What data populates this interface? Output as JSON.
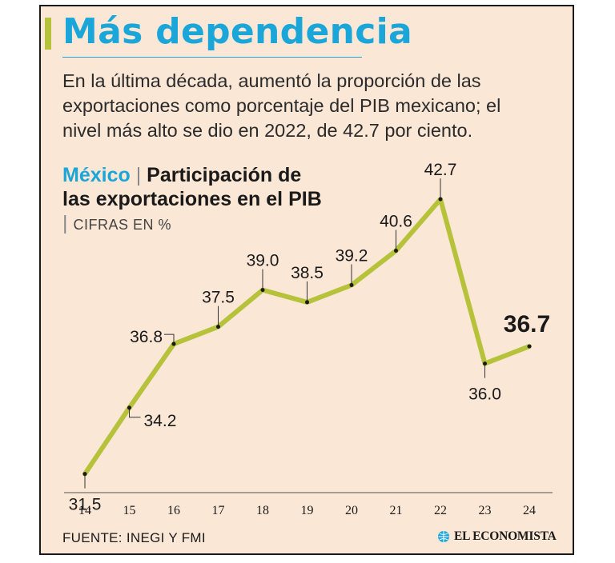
{
  "header": {
    "title": "Más dependencia",
    "subtitle": "En la última década, aumentó la proporción de las exportaciones como porcentaje del PIB mexicano; el nivel más alto se dio en 2022, de 42.7 por ciento."
  },
  "chart_header": {
    "country": "México",
    "separator": "|",
    "title": "Participación de las exportaciones en el PIB",
    "units": "CIFRAS EN %"
  },
  "chart_data": {
    "type": "line",
    "title": "Participación de las exportaciones en el PIB",
    "categories": [
      "14",
      "15",
      "16",
      "17",
      "18",
      "19",
      "20",
      "21",
      "22",
      "23",
      "24"
    ],
    "values": [
      31.5,
      34.2,
      36.8,
      37.5,
      39.0,
      38.5,
      39.2,
      40.6,
      42.7,
      36.0,
      36.7
    ],
    "data_labels": [
      "31.5",
      "34.2",
      "36.8",
      "37.5",
      "39.0",
      "38.5",
      "39.2",
      "40.6",
      "42.7",
      "36.0",
      "36.7"
    ],
    "highlight": "24",
    "ylim": [
      30,
      45
    ],
    "grid": false,
    "legend": "none",
    "line_color": "#b5c23a"
  },
  "footer": {
    "source": "FUENTE: INEGI Y FMI",
    "brand": "EL ECONOMISTA",
    "brand_icon": "globe-icon"
  },
  "colors": {
    "accent": "#1aa6d9",
    "background": "#fbe7d6",
    "line": "#b5c23a",
    "text": "#1a1a1a"
  }
}
